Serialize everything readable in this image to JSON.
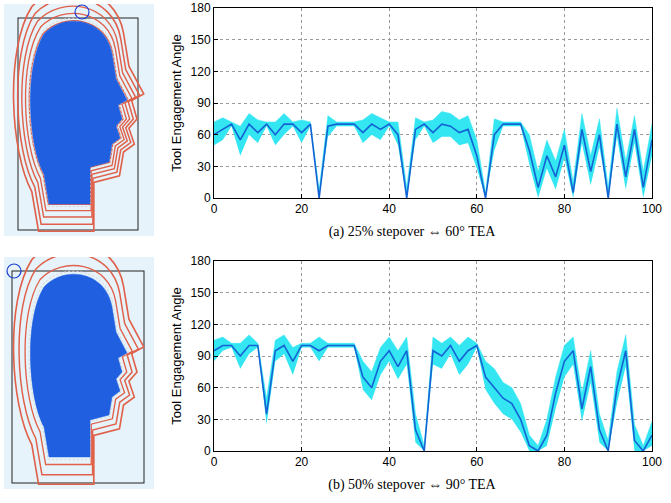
{
  "chart_data": [
    {
      "type": "line",
      "title": "(a) 25% stepover ⇔ 60° TEA",
      "y_label": "Tool Engagement Angle",
      "x": [
        0,
        2,
        4,
        6,
        8,
        10,
        12,
        14,
        16,
        18,
        20,
        22,
        24,
        26,
        28,
        30,
        32,
        34,
        36,
        38,
        40,
        42,
        44,
        46,
        48,
        50,
        52,
        54,
        56,
        58,
        60,
        62,
        64,
        66,
        68,
        70,
        72,
        74,
        76,
        78,
        80,
        82,
        84,
        86,
        88,
        90,
        92,
        94,
        96,
        98,
        100
      ],
      "series": [
        {
          "type": "band",
          "color": "#33e6f2",
          "lower": [
            50,
            55,
            68,
            40,
            60,
            52,
            68,
            50,
            60,
            68,
            52,
            68,
            0,
            58,
            68,
            68,
            68,
            52,
            60,
            55,
            68,
            50,
            0,
            55,
            68,
            52,
            58,
            58,
            50,
            52,
            28,
            0,
            45,
            68,
            68,
            68,
            32,
            0,
            28,
            8,
            38,
            0,
            52,
            12,
            48,
            0,
            58,
            8,
            52,
            0,
            40
          ],
          "upper": [
            72,
            76,
            72,
            68,
            80,
            74,
            72,
            72,
            80,
            72,
            74,
            72,
            8,
            78,
            72,
            72,
            72,
            74,
            80,
            76,
            72,
            72,
            10,
            76,
            72,
            74,
            82,
            80,
            74,
            78,
            55,
            5,
            75,
            72,
            72,
            72,
            60,
            25,
            55,
            35,
            65,
            15,
            80,
            40,
            75,
            10,
            85,
            35,
            78,
            25,
            70
          ]
        },
        {
          "type": "line",
          "color": "#1463d4",
          "values": [
            60,
            65,
            70,
            55,
            70,
            62,
            70,
            60,
            70,
            70,
            62,
            70,
            0,
            68,
            70,
            70,
            70,
            62,
            70,
            65,
            70,
            60,
            0,
            65,
            70,
            62,
            70,
            68,
            62,
            65,
            40,
            0,
            60,
            70,
            70,
            70,
            45,
            10,
            40,
            20,
            50,
            5,
            65,
            25,
            60,
            0,
            70,
            20,
            65,
            10,
            55
          ]
        }
      ],
      "xlim": [
        0,
        100
      ],
      "ylim": [
        0,
        180
      ],
      "xticks": [
        0,
        20,
        40,
        60,
        80,
        100
      ],
      "yticks": [
        0,
        30,
        60,
        90,
        120,
        150,
        180
      ],
      "grid": true
    },
    {
      "type": "line",
      "title": "(b) 50% stepover ⇔ 90° TEA",
      "y_label": "Tool Engagement Angle",
      "x": [
        0,
        2,
        4,
        6,
        8,
        10,
        12,
        14,
        16,
        18,
        20,
        22,
        24,
        26,
        28,
        30,
        32,
        34,
        36,
        38,
        40,
        42,
        44,
        46,
        48,
        50,
        52,
        54,
        56,
        58,
        60,
        62,
        64,
        66,
        68,
        70,
        72,
        74,
        76,
        78,
        80,
        82,
        84,
        86,
        88,
        90,
        92,
        94,
        96,
        98,
        100
      ],
      "series": [
        {
          "type": "band",
          "color": "#33e6f2",
          "lower": [
            85,
            95,
            98,
            78,
            92,
            98,
            25,
            85,
            92,
            72,
            98,
            98,
            85,
            98,
            98,
            98,
            98,
            58,
            48,
            72,
            85,
            68,
            82,
            8,
            0,
            82,
            78,
            92,
            72,
            82,
            98,
            58,
            45,
            35,
            30,
            18,
            0,
            0,
            5,
            40,
            70,
            82,
            28,
            65,
            8,
            0,
            45,
            80,
            0,
            0,
            5
          ],
          "upper": [
            105,
            108,
            102,
            102,
            110,
            102,
            50,
            105,
            110,
            98,
            102,
            102,
            108,
            102,
            102,
            102,
            102,
            85,
            75,
            98,
            108,
            95,
            108,
            35,
            5,
            108,
            102,
            108,
            100,
            108,
            102,
            85,
            78,
            65,
            60,
            45,
            15,
            5,
            30,
            70,
            100,
            108,
            55,
            95,
            35,
            10,
            75,
            110,
            25,
            5,
            28
          ]
        },
        {
          "type": "line",
          "color": "#1463d4",
          "values": [
            95,
            100,
            100,
            90,
            100,
            100,
            35,
            95,
            100,
            85,
            100,
            100,
            95,
            100,
            100,
            100,
            100,
            70,
            60,
            85,
            95,
            80,
            95,
            20,
            0,
            95,
            90,
            100,
            85,
            95,
            100,
            70,
            60,
            50,
            45,
            30,
            5,
            0,
            15,
            55,
            85,
            95,
            40,
            80,
            20,
            0,
            60,
            95,
            10,
            0,
            15
          ]
        }
      ],
      "xlim": [
        0,
        100
      ],
      "ylim": [
        0,
        180
      ],
      "xticks": [
        0,
        20,
        40,
        60,
        80,
        100
      ],
      "yticks": [
        0,
        30,
        60,
        90,
        120,
        150,
        180
      ],
      "grid": true
    }
  ]
}
